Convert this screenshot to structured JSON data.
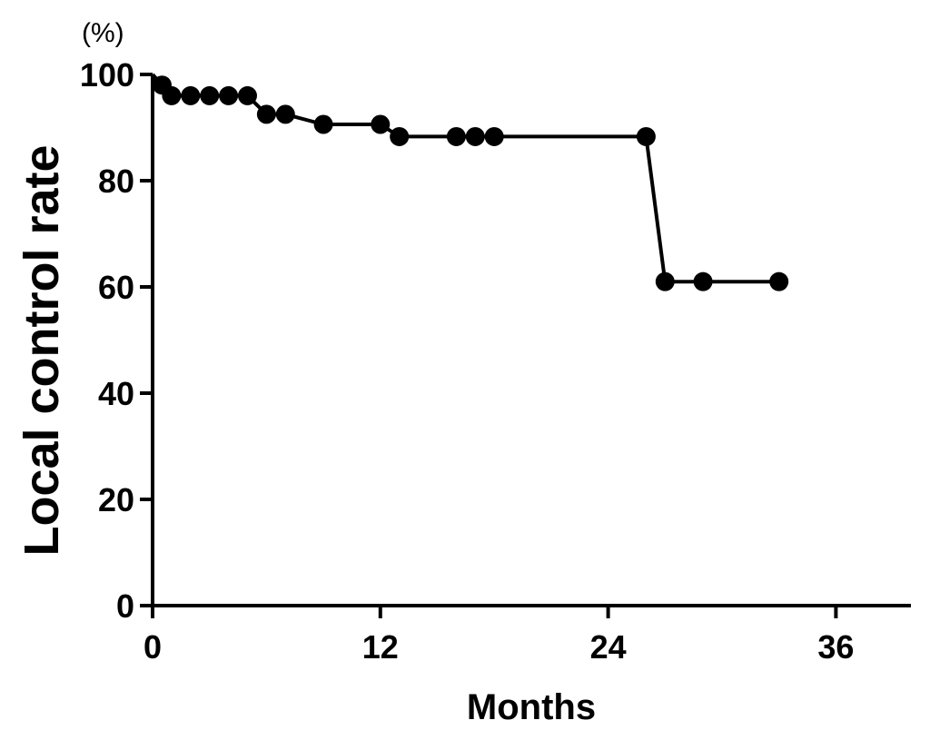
{
  "chart_data": {
    "type": "line",
    "title": "",
    "xlabel": "Months",
    "ylabel": "Local control rate",
    "y_unit_label": "(%)",
    "xlim": [
      0,
      40
    ],
    "ylim": [
      0,
      100
    ],
    "x_ticks": [
      0,
      12,
      24,
      36
    ],
    "y_ticks": [
      0,
      20,
      40,
      60,
      80,
      100
    ],
    "grid": false,
    "legend": "none",
    "series": [
      {
        "step_line": [
          {
            "x": 0,
            "y": 100
          },
          {
            "x": 0.5,
            "y": 98
          },
          {
            "x": 1,
            "y": 96
          },
          {
            "x": 5,
            "y": 96
          },
          {
            "x": 6,
            "y": 92.5
          },
          {
            "x": 7,
            "y": 92.5
          },
          {
            "x": 9,
            "y": 90.6
          },
          {
            "x": 12,
            "y": 90.6
          },
          {
            "x": 13,
            "y": 88.3
          },
          {
            "x": 26,
            "y": 88.3
          },
          {
            "x": 27,
            "y": 61
          },
          {
            "x": 33,
            "y": 61
          }
        ],
        "points": [
          {
            "x": 0.5,
            "y": 98
          },
          {
            "x": 1,
            "y": 96
          },
          {
            "x": 2,
            "y": 96
          },
          {
            "x": 3,
            "y": 96
          },
          {
            "x": 4,
            "y": 96
          },
          {
            "x": 5,
            "y": 96
          },
          {
            "x": 6,
            "y": 92.5
          },
          {
            "x": 7,
            "y": 92.5
          },
          {
            "x": 9,
            "y": 90.6
          },
          {
            "x": 12,
            "y": 90.6
          },
          {
            "x": 13,
            "y": 88.3
          },
          {
            "x": 16,
            "y": 88.3
          },
          {
            "x": 17,
            "y": 88.3
          },
          {
            "x": 18,
            "y": 88.3
          },
          {
            "x": 26,
            "y": 88.3
          },
          {
            "x": 27,
            "y": 61
          },
          {
            "x": 29,
            "y": 61
          },
          {
            "x": 33,
            "y": 61
          }
        ]
      }
    ]
  },
  "colors": {
    "line": "#000000",
    "marker": "#000000",
    "axis": "#000000"
  }
}
